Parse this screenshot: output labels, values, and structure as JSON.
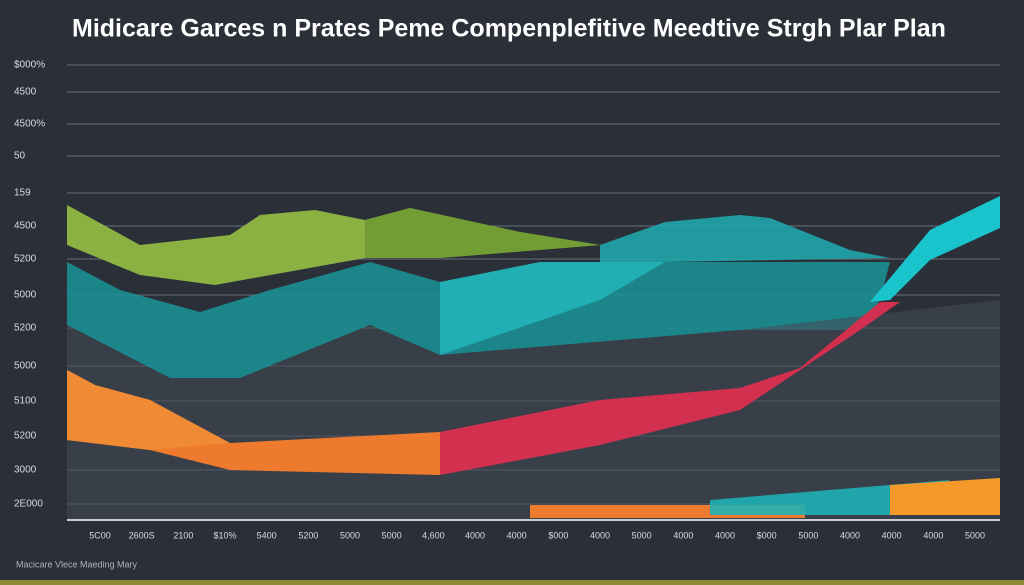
{
  "title": "Midicare Garces n Prates Peme Compenplefitive Meedtive Strgh Plar Plan",
  "footer": "Macicare Vlece Maeding Mary",
  "y_labels": [
    "$000%",
    "4500",
    "4500%",
    "50",
    "159",
    "4500",
    "5200",
    "5000",
    "5200",
    "5000",
    "5100",
    "5200",
    "3000",
    "2E000"
  ],
  "x_labels": [
    "5C00",
    "2600S",
    "2100",
    "$10%",
    "5400",
    "5200",
    "5000",
    "5000",
    "4,600",
    "4000",
    "4000",
    "$000",
    "4000",
    "5000",
    "4000",
    "4000",
    "$000",
    "5000",
    "4000",
    "4000",
    "4000",
    "5000"
  ]
}
